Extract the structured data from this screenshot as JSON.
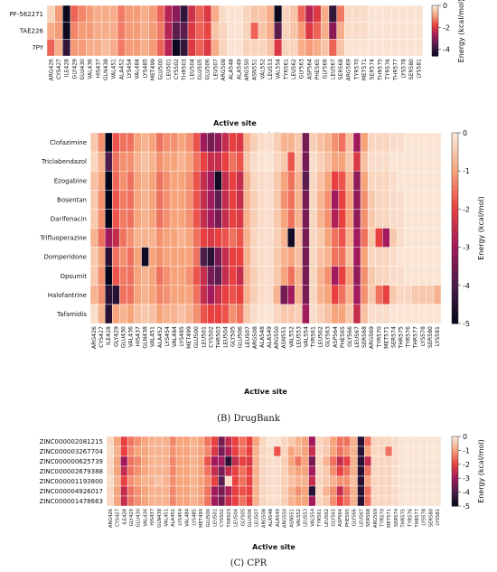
{
  "chart_data": [
    {
      "type": "heatmap",
      "caption": "(A) Reference inhibitors",
      "x_label": "Active site",
      "colorbar_label": "Energy (kcal/mol)",
      "colormap": [
        "#03051a",
        "#4c1d4b",
        "#a11a5b",
        "#e83f3f",
        "#f6a47c",
        "#faebdd"
      ],
      "zlim": [
        -4.6,
        0
      ],
      "zticks": [
        0,
        -2,
        -4
      ],
      "rows": [
        "PF-562271",
        "TAE226",
        "7PY"
      ],
      "categories": [
        "ARG426",
        "CYS427",
        "ILE428",
        "GLY429",
        "GLU430",
        "VAL436",
        "HIS437",
        "GLN438",
        "VAL451",
        "ALA452",
        "LYS454",
        "VAL484",
        "LYS485",
        "MET499",
        "GLU500",
        "LEU501",
        "CYS502",
        "THR503",
        "LEU504",
        "GLU505",
        "GLU506",
        "LEU507",
        "ARG508",
        "ALA548",
        "ALA549",
        "ARG550",
        "ASN551",
        "VAL552",
        "LEU553",
        "VAL554",
        "TYR561",
        "LEU562",
        "GLY563",
        "ASP564",
        "PHE565",
        "GLY566",
        "LEU567",
        "SER568",
        "ARG569",
        "TYR570",
        "MET571",
        "SER574",
        "THR575",
        "TYR576",
        "THR577",
        "LYS578",
        "SER580",
        "LYS581"
      ],
      "values": [
        [
          -0.3,
          -1,
          -4.5,
          -1.5,
          -1.2,
          -1,
          -0.8,
          -0.8,
          -0.8,
          -1.3,
          -1,
          -1,
          -0.8,
          -1,
          -1.5,
          -2.5,
          -3,
          -4,
          -2.2,
          -1.5,
          -2,
          -0.8,
          -0.2,
          -0.1,
          -0.1,
          -0.3,
          -0.5,
          -0.5,
          -0.8,
          -4.5,
          -0.3,
          -0.5,
          -1.5,
          -2.5,
          -2,
          -0.8,
          -4,
          -1.3,
          -0.2,
          -0.2,
          -0.2,
          -0.1,
          -0.1,
          -0.1,
          -0.1,
          -0.1,
          -0.1,
          -0.1
        ],
        [
          -0.8,
          -1,
          -4.5,
          -1.2,
          -1,
          -1,
          -0.8,
          -0.8,
          -0.8,
          -1.3,
          -1,
          -1,
          -0.8,
          -1,
          -1.3,
          -2.5,
          -3.5,
          -3.5,
          -2,
          -1.5,
          -1.8,
          -0.5,
          -0.3,
          -0.1,
          -0.1,
          -0.3,
          -1.5,
          -0.5,
          -0.8,
          -3.5,
          -0.3,
          -0.5,
          -1,
          -2,
          -1.5,
          -0.8,
          -3,
          -0.8,
          -0.2,
          -0.2,
          -0.2,
          -0.1,
          -0.1,
          -0.1,
          -0.1,
          -0.1,
          -0.1,
          -0.1
        ],
        [
          -1.5,
          -0.8,
          -4,
          -1,
          -1,
          -0.8,
          -0.8,
          -0.6,
          -0.8,
          -1.3,
          -1,
          -1,
          -0.8,
          -1,
          -1.5,
          -2.5,
          -4.5,
          -4,
          -2,
          -1.5,
          -2,
          -0.8,
          -0.3,
          -0.1,
          -0.1,
          -0.3,
          -0.3,
          -0.3,
          -0.5,
          -2,
          -0.3,
          -0.3,
          -0.8,
          -1,
          -0.8,
          -0.5,
          -1.5,
          -0.5,
          -0.1,
          -0.1,
          -0.1,
          -0.1,
          -0.1,
          -0.1,
          -0.1,
          -0.1,
          -0.1,
          -0.1
        ]
      ]
    },
    {
      "type": "heatmap",
      "caption": "(B) DrugBank",
      "x_label": "Active site",
      "colorbar_label": "Energy (kcal/mol)",
      "colormap": [
        "#03051a",
        "#4c1d4b",
        "#a11a5b",
        "#e83f3f",
        "#f6a47c",
        "#faebdd"
      ],
      "zlim": [
        -5,
        0
      ],
      "zticks": [
        0,
        -1,
        -2,
        -3,
        -4,
        -5
      ],
      "rows": [
        "Clofazimine",
        "Triclabendazol",
        "Ezogabine",
        "Bosentan",
        "Darifenacin",
        "Trifluoperazine",
        "Domperidone",
        "Opsumit",
        "Halofantrine",
        "Tafamidis"
      ],
      "categories": [
        "ARG426",
        "CYS427",
        "ILE428",
        "GLY429",
        "GLU430",
        "VAL436",
        "HIS437",
        "GLN438",
        "VAL451",
        "ALA452",
        "LYS454",
        "VAL484",
        "LYS485",
        "MET499",
        "GLU500",
        "LEU501",
        "CYS502",
        "THR503",
        "LEU504",
        "GLY505",
        "GLU506",
        "LEU507",
        "ARG508",
        "ALA548",
        "ALA549",
        "ARG550",
        "ASN551",
        "VAL552",
        "LEU553",
        "VAL554",
        "TYR561",
        "LEU562",
        "GLY563",
        "ASP564",
        "PHE565",
        "GLY566",
        "LEU567",
        "SER568",
        "ARG569",
        "TYR570",
        "MET571",
        "SER574",
        "THR575",
        "TYR576",
        "THR577",
        "LYS578",
        "SER580",
        "LYS581"
      ],
      "values": [
        [
          -0.5,
          -1.2,
          -5,
          -1.8,
          -1.5,
          -1.5,
          -1,
          -0.8,
          -1,
          -1.5,
          -1.2,
          -1.2,
          -1,
          -1.2,
          -1.8,
          -3,
          -3.5,
          -3.2,
          -2.5,
          -2,
          -2.2,
          -0.8,
          -0.4,
          -0.2,
          -0.2,
          -0.4,
          -0.8,
          -0.8,
          -0.5,
          -3.5,
          -0.4,
          -0.6,
          -0.8,
          -1.2,
          -1.5,
          -0.6,
          -3,
          -1,
          -0.3,
          -0.3,
          -0.3,
          -0.2,
          -0.2,
          -0.1,
          -0.1,
          -0.1,
          -0.1,
          -0.1
        ],
        [
          -0.3,
          -0.8,
          -4,
          -1.5,
          -1.2,
          -1.2,
          -0.8,
          -0.6,
          -0.8,
          -1.2,
          -1,
          -1,
          -0.8,
          -1,
          -1.5,
          -2,
          -2.5,
          -2.5,
          -2,
          -1.5,
          -1.8,
          -0.5,
          -0.2,
          -0.1,
          -0.1,
          -0.3,
          -0.5,
          -1.8,
          -0.5,
          -3.5,
          -0.2,
          -0.4,
          -0.6,
          -1,
          -1,
          -0.5,
          -2.2,
          -0.6,
          -0.2,
          -0.2,
          -0.2,
          -0.1,
          -0.1,
          -0.1,
          -0.1,
          -0.1,
          -0.1,
          -0.1
        ],
        [
          -0.6,
          -1,
          -5,
          -1.6,
          -1.2,
          -1.5,
          -1,
          -0.8,
          -1,
          -1.5,
          -1.2,
          -1,
          -1,
          -1.2,
          -1.8,
          -2.5,
          -3,
          -4.8,
          -2.5,
          -2,
          -2.5,
          -0.8,
          -0.3,
          -0.2,
          -0.2,
          -0.5,
          -1,
          -1.5,
          -0.8,
          -3.8,
          -0.3,
          -0.6,
          -1,
          -2,
          -1.8,
          -0.8,
          -3.2,
          -1,
          -0.3,
          -0.3,
          -0.3,
          -0.2,
          -0.1,
          -0.1,
          -0.1,
          -0.1,
          -0.1,
          -0.1
        ],
        [
          -0.5,
          -1.2,
          -5,
          -1.8,
          -1.4,
          -1.5,
          -1,
          -0.8,
          -1,
          -1.5,
          -1.2,
          -1,
          -1,
          -1.2,
          -1.8,
          -2.5,
          -3,
          -3.8,
          -2.5,
          -2,
          -2.5,
          -0.8,
          -0.4,
          -0.2,
          -0.2,
          -0.5,
          -1.2,
          -1.5,
          -0.8,
          -3.5,
          -0.3,
          -0.8,
          -1.2,
          -3,
          -2,
          -1,
          -3.2,
          -1.2,
          -0.5,
          -0.3,
          -0.3,
          -0.2,
          -0.2,
          -0.1,
          -0.1,
          -0.1,
          -0.1,
          -0.1
        ],
        [
          -0.5,
          -1.2,
          -5,
          -1.8,
          -1.4,
          -1.5,
          -1,
          -0.8,
          -1,
          -1.5,
          -1.2,
          -1,
          -1,
          -1.2,
          -1.8,
          -2.5,
          -3,
          -3.5,
          -2.5,
          -2,
          -2.2,
          -0.8,
          -0.4,
          -0.2,
          -0.2,
          -0.5,
          -1,
          -1.5,
          -0.8,
          -3.5,
          -0.3,
          -0.8,
          -1.2,
          -2.8,
          -2,
          -1,
          -3.2,
          -1.2,
          -0.5,
          -0.3,
          -0.3,
          -0.2,
          -0.2,
          -0.1,
          -0.1,
          -0.1,
          -0.1,
          -0.1
        ],
        [
          -0.8,
          -1.5,
          -3,
          -2.5,
          -1.5,
          -1.2,
          -0.8,
          -0.8,
          -0.8,
          -1.2,
          -1,
          -1,
          -0.8,
          -1,
          -1.5,
          -2,
          -2.2,
          -2,
          -1.8,
          -1.5,
          -1.8,
          -0.8,
          -0.3,
          -0.2,
          -0.2,
          -0.4,
          -0.8,
          -4.8,
          -0.6,
          -3.5,
          -0.3,
          -0.5,
          -1,
          -1.5,
          -1.8,
          -0.8,
          -3,
          -1.5,
          -0.5,
          -2,
          -3,
          -0.5,
          -0.2,
          -0.1,
          -0.1,
          -0.1,
          -0.1,
          -0.1
        ],
        [
          -0.5,
          -1,
          -4.5,
          -1.5,
          -1.2,
          -1.5,
          -1,
          -4.8,
          -1,
          -1.2,
          -1,
          -1,
          -1,
          -1,
          -1.5,
          -4,
          -4.5,
          -3.5,
          -2.5,
          -2,
          -2,
          -0.8,
          -0.3,
          -0.2,
          -0.2,
          -0.5,
          -0.8,
          -1,
          -0.6,
          -3.5,
          -0.3,
          -0.6,
          -0.8,
          -1.5,
          -1.5,
          -0.6,
          -3,
          -1,
          -0.3,
          -0.3,
          -0.3,
          -0.2,
          -0.1,
          -0.1,
          -0.1,
          -0.1,
          -0.1,
          -0.1
        ],
        [
          -0.5,
          -1.2,
          -5,
          -1.8,
          -1.4,
          -1.5,
          -1,
          -0.8,
          -1,
          -1.5,
          -1.2,
          -1,
          -1,
          -1.2,
          -1.8,
          -2.5,
          -3.5,
          -3.8,
          -2.5,
          -2,
          -2.5,
          -0.8,
          -0.4,
          -0.2,
          -0.2,
          -0.5,
          -1,
          -1.5,
          -0.8,
          -3.5,
          -0.3,
          -0.8,
          -1.2,
          -3,
          -2,
          -1,
          -3.2,
          -1.2,
          -0.5,
          -0.3,
          -0.3,
          -0.2,
          -0.2,
          -0.1,
          -0.1,
          -0.1,
          -0.1,
          -0.1
        ],
        [
          -0.8,
          -1.2,
          -4.5,
          -4.5,
          -1.5,
          -1.5,
          -1,
          -0.8,
          -1,
          -1.3,
          -1.2,
          -1,
          -1,
          -1,
          -1.5,
          -2.5,
          -3,
          -2.5,
          -2,
          -1.8,
          -2,
          -0.8,
          -0.4,
          -0.2,
          -0.2,
          -0.8,
          -3.5,
          -3,
          -0.8,
          -3.5,
          -0.3,
          -0.8,
          -1,
          -2,
          -1.5,
          -0.8,
          -3,
          -1.2,
          -0.5,
          -1.5,
          -2,
          -0.5,
          -0.3,
          -0.3,
          -0.5,
          -0.5,
          -0.5,
          -0.8
        ],
        [
          -0.2,
          -0.8,
          -4.5,
          -1,
          -0.8,
          -1,
          -0.6,
          -0.5,
          -0.6,
          -1,
          -0.8,
          -0.8,
          -0.6,
          -0.8,
          -1.2,
          -1.8,
          -2,
          -2,
          -1.8,
          -1.2,
          -1.5,
          -0.5,
          -0.2,
          -0.1,
          -0.1,
          -0.3,
          -0.5,
          -0.5,
          -0.4,
          -3,
          -0.2,
          -0.4,
          -0.6,
          -1,
          -1,
          -0.5,
          -2.5,
          -0.6,
          -0.2,
          -0.2,
          -0.2,
          -0.1,
          -0.1,
          -0.1,
          -0.1,
          -0.1,
          -0.1,
          -0.1
        ]
      ]
    },
    {
      "type": "heatmap",
      "caption": "(C) CPR",
      "x_label": "Active site",
      "colorbar_label": "Energy (kcal/mol)",
      "colormap": [
        "#03051a",
        "#4c1d4b",
        "#a11a5b",
        "#e83f3f",
        "#f6a47c",
        "#faebdd"
      ],
      "zlim": [
        -5,
        0
      ],
      "zticks": [
        0,
        -1,
        -2,
        -3,
        -4,
        -5
      ],
      "rows": [
        "ZINC000002081215",
        "ZINC000003267704",
        "ZINC000000625739",
        "ZINC000002679388",
        "ZINC000001193800",
        "ZINC000004926017",
        "ZINC000001478663"
      ],
      "categories": [
        "ARG426",
        "CYS427",
        "ILE428",
        "GLY429",
        "GLU430",
        "VAL436",
        "HIS437",
        "GLN438",
        "VAL451",
        "ALA452",
        "LYS454",
        "VAL484",
        "LYS485",
        "MET499",
        "GLU500",
        "LEU501",
        "CYS502",
        "THR503",
        "LEU504",
        "GLY505",
        "GLU506",
        "LEU507",
        "ARG508",
        "ALA548",
        "ALA549",
        "ARG550",
        "ASN551",
        "VAL552",
        "LEU553",
        "VAL554",
        "TYR561",
        "LEU562",
        "GLY563",
        "ASP564",
        "PHE565",
        "GLY566",
        "LEU567",
        "SER568",
        "ARG569",
        "TYR570",
        "MET571",
        "SER574",
        "THR575",
        "TYR576",
        "THR577",
        "LYS578",
        "SER580",
        "LYS581"
      ],
      "values": [
        [
          -0.3,
          -1,
          -2,
          -1.5,
          -1.2,
          -1,
          -0.8,
          -0.8,
          -0.8,
          -1.3,
          -1,
          -1,
          -0.8,
          -1,
          -1.5,
          -2,
          -3.5,
          -2.5,
          -2,
          -1.5,
          -2,
          -1,
          -0.3,
          -0.1,
          -0.1,
          -0.3,
          -0.5,
          -0.8,
          -1,
          -3,
          -0.3,
          -0.5,
          -1,
          -1.5,
          -1.5,
          -0.8,
          -4.5,
          -1.5,
          -0.3,
          -0.3,
          -0.3,
          -0.2,
          -0.1,
          -0.1,
          -0.1,
          -0.1,
          -0.1,
          -0.1
        ],
        [
          -0.2,
          -0.8,
          -2,
          -1.3,
          -1,
          -1,
          -0.8,
          -0.8,
          -0.8,
          -1.2,
          -1,
          -1,
          -0.8,
          -1,
          -1.3,
          -2.2,
          -3.5,
          -2.8,
          -2,
          -1.5,
          -2,
          -0.8,
          -0.3,
          -0.2,
          -1.8,
          -0.3,
          -1,
          -0.8,
          -1,
          -2.5,
          -0.3,
          -0.5,
          -1,
          -1.5,
          -1.2,
          -0.8,
          -4.5,
          -1,
          -0.3,
          -0.3,
          -1.5,
          -0.2,
          -0.1,
          -0.1,
          -0.1,
          -0.1,
          -0.1,
          -0.1
        ],
        [
          -0.3,
          -1,
          -3,
          -1.5,
          -1.3,
          -1,
          -0.8,
          -0.8,
          -0.8,
          -1.3,
          -1,
          -1,
          -0.8,
          -1,
          -1.8,
          -3,
          -3,
          -4.5,
          -2.5,
          -2,
          -2.2,
          -0.8,
          -0.3,
          -0.2,
          -0.2,
          -0.4,
          -1,
          -1.5,
          -1,
          -3.5,
          -0.3,
          -0.8,
          -1.5,
          -2.5,
          -2,
          -0.8,
          -4.5,
          -2.5,
          -0.3,
          -0.3,
          -0.3,
          -0.2,
          -0.1,
          -0.1,
          -0.1,
          -0.1,
          -0.1,
          -0.1
        ],
        [
          -0.3,
          -1,
          -2.5,
          -1.5,
          -1.2,
          -1,
          -0.8,
          -0.8,
          -0.8,
          -1.3,
          -1,
          -1,
          -0.8,
          -1,
          -1.5,
          -2.5,
          -3.5,
          -2.5,
          -2,
          -1.5,
          -2,
          -0.8,
          -0.3,
          -0.2,
          -0.2,
          -0.4,
          -0.8,
          -1,
          -1,
          -3,
          -0.3,
          -0.5,
          -1.2,
          -2,
          -1.5,
          -0.8,
          -4.5,
          -1.5,
          -0.3,
          -0.3,
          -0.3,
          -0.2,
          -0.1,
          -0.1,
          -0.1,
          -0.1,
          -0.1,
          -0.1
        ],
        [
          -0.2,
          -0.8,
          -2,
          -1.2,
          -1,
          -0.8,
          -0.8,
          -0.6,
          -0.8,
          -1.2,
          -1,
          -1,
          -0.8,
          -1,
          -1.3,
          -2,
          -3.8,
          -0.2,
          -2,
          -1.5,
          -2,
          -0.8,
          -0.3,
          -0.2,
          -0.2,
          -0.4,
          -0.6,
          -0.8,
          -0.8,
          -2.5,
          -0.3,
          -0.5,
          -0.8,
          -1.2,
          -1.2,
          -0.6,
          -4.5,
          -1,
          -0.3,
          -0.3,
          -0.3,
          -0.2,
          -0.1,
          -0.1,
          -0.1,
          -0.1,
          -0.1,
          -0.1
        ],
        [
          -0.3,
          -1,
          -2.5,
          -1.5,
          -1.2,
          -1,
          -0.8,
          -0.8,
          -0.8,
          -1.3,
          -1,
          -1,
          -0.8,
          -1,
          -1.5,
          -3,
          -3.5,
          -2.8,
          -2,
          -1.8,
          -2,
          -0.8,
          -0.3,
          -0.2,
          -0.2,
          -0.4,
          -0.8,
          -1.2,
          -1,
          -4.5,
          -0.3,
          -0.8,
          -1.2,
          -2.5,
          -1.5,
          -0.8,
          -4.5,
          -1.5,
          -0.3,
          -0.3,
          -0.3,
          -0.2,
          -0.1,
          -0.1,
          -0.1,
          -0.1,
          -0.1,
          -0.1
        ],
        [
          -0.3,
          -1,
          -2.5,
          -1.5,
          -1.2,
          -1,
          -0.8,
          -0.8,
          -0.8,
          -1.3,
          -1,
          -1,
          -0.8,
          -1,
          -1.5,
          -3,
          -3.5,
          -2.5,
          -2,
          -1.5,
          -2,
          -0.8,
          -0.3,
          -0.2,
          -0.2,
          -0.4,
          -0.8,
          -1,
          -1,
          -3,
          -0.3,
          -0.5,
          -1.2,
          -2,
          -1.5,
          -0.8,
          -4.5,
          -1.5,
          -0.3,
          -0.3,
          -0.3,
          -0.2,
          -0.1,
          -0.1,
          -0.1,
          -0.1,
          -0.1,
          -0.1
        ]
      ]
    }
  ]
}
